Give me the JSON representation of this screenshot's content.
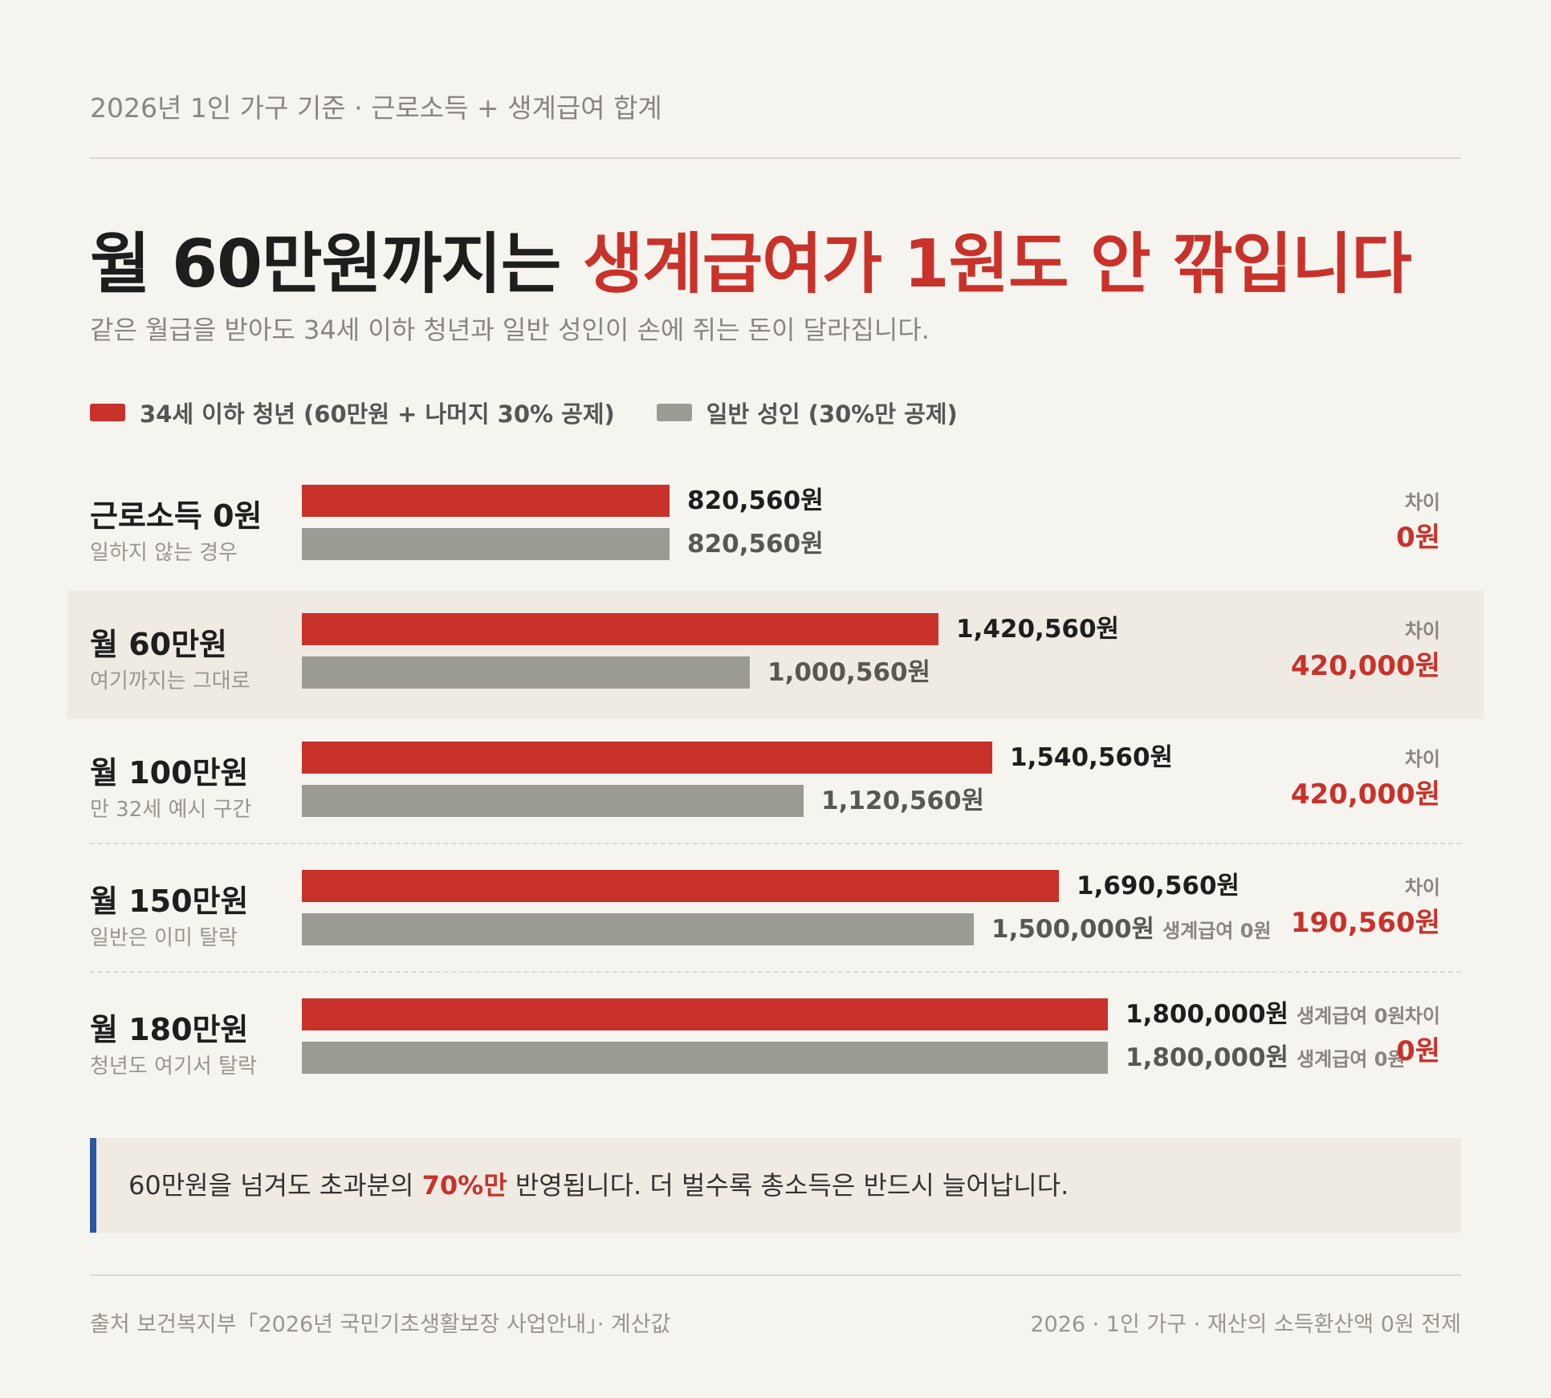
{
  "kicker": "2026년 1인 가구 기준 · 근로소득 + 생계급여 합계",
  "headline": {
    "lead": "월 60만원까지는 ",
    "accent": "생계급여가 1원도 안 깎입니다"
  },
  "subtitle": "같은 월급을 받아도 34세 이하 청년과 일반 성인이 손에 쥐는 돈이 달라집니다.",
  "colors": {
    "youth": "#c8322b",
    "general": "#9b9a93",
    "callout_border": "#2a58a0",
    "highlight_row": "#efebe3"
  },
  "chart_data": {
    "type": "bar",
    "orientation": "horizontal",
    "unit": "원",
    "xlim": [
      0,
      2240000
    ],
    "grid": false,
    "legend_position": "top-left",
    "categories": [
      "근로소득 0원",
      "월 60만원",
      "월 100만원",
      "월 150만원",
      "월 180만원"
    ],
    "category_notes": [
      "일하지 않는 경우",
      "여기까지는 그대로",
      "만 32세 예시 구간",
      "일반은 이미 탈락",
      "청년도 여기서 탈락"
    ],
    "highlighted_category": "월 60만원",
    "series": [
      {
        "name": "34세 이하 청년 (60만원 + 나머지 30% 공제)",
        "color": "#c8322b",
        "values": [
          820560,
          1420560,
          1540560,
          1690560,
          1800000
        ],
        "labels": [
          "820,560원",
          "1,420,560원",
          "1,540,560원",
          "1,690,560원",
          "1,800,000원"
        ],
        "notes": [
          "",
          "",
          "",
          "",
          "생계급여 0원"
        ]
      },
      {
        "name": "일반 성인 (30%만 공제)",
        "color": "#9b9a93",
        "values": [
          820560,
          1000560,
          1120560,
          1500000,
          1800000
        ],
        "labels": [
          "820,560원",
          "1,000,560원",
          "1,120,560원",
          "1,500,000원",
          "1,800,000원"
        ],
        "notes": [
          "",
          "",
          "",
          "생계급여 0원",
          "생계급여 0원"
        ]
      }
    ],
    "difference_label": "차이",
    "differences": [
      0,
      420000,
      420000,
      190560,
      0
    ],
    "difference_labels": [
      "0원",
      "420,000원",
      "420,000원",
      "190,560원",
      "0원"
    ]
  },
  "callout": {
    "before": "60만원을 넘겨도 초과분의 ",
    "emphasis": "70%만",
    "after": " 반영됩니다. 더 벌수록 총소득은 반드시 늘어납니다."
  },
  "footer": {
    "source": "출처 보건복지부「2026년 국민기초생활보장 사업안내」· 계산값",
    "note": "2026 · 1인 가구 · 재산의 소득환산액 0원 전제"
  }
}
